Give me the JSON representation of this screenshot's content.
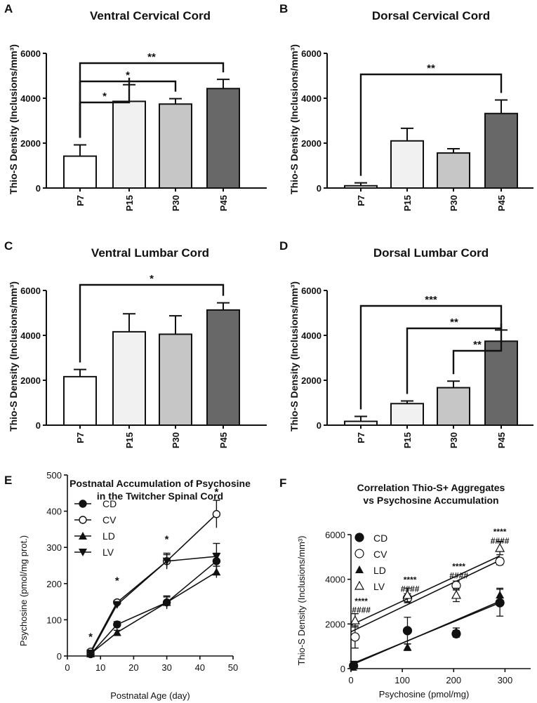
{
  "chart_data": [
    {
      "panel": "A",
      "type": "bar",
      "title": "Ventral Cervical Cord",
      "ylabel": "Thio-S Density (Inclusions/mm³)",
      "xlabel": "",
      "categories": [
        "P7",
        "P15",
        "P30",
        "P45"
      ],
      "values": [
        1420,
        3860,
        3740,
        4430
      ],
      "errors": [
        500,
        740,
        240,
        410
      ],
      "colors": [
        "#ffffff",
        "#f1f1f1",
        "#c6c6c6",
        "#686868"
      ],
      "ylim": [
        0,
        6000
      ],
      "yticks": [
        "0",
        "2000",
        "4000",
        "6000"
      ],
      "significance": [
        {
          "from": 0,
          "to": 1,
          "label": "*"
        },
        {
          "from": 0,
          "to": 2,
          "label": "*"
        },
        {
          "from": 0,
          "to": 3,
          "label": "**"
        }
      ]
    },
    {
      "panel": "B",
      "type": "bar",
      "title": "Dorsal Cervical Cord",
      "ylabel": "Thio-S Density (Inclusions/mm³)",
      "xlabel": "",
      "categories": [
        "P7",
        "P15",
        "P30",
        "P45"
      ],
      "values": [
        100,
        2100,
        1560,
        3320
      ],
      "errors": [
        130,
        560,
        190,
        600
      ],
      "colors": [
        "#ffffff",
        "#f1f1f1",
        "#c6c6c6",
        "#686868"
      ],
      "ylim": [
        0,
        6000
      ],
      "yticks": [
        "0",
        "2000",
        "4000",
        "6000"
      ],
      "significance": [
        {
          "from": 0,
          "to": 3,
          "label": "**"
        }
      ]
    },
    {
      "panel": "C",
      "type": "bar",
      "title": "Ventral Lumbar Cord",
      "ylabel": "Thio-S Density (Inclusions/mm³)",
      "xlabel": "",
      "categories": [
        "P7",
        "P15",
        "P30",
        "P45"
      ],
      "values": [
        2160,
        4160,
        4050,
        5130
      ],
      "errors": [
        320,
        800,
        820,
        320
      ],
      "colors": [
        "#ffffff",
        "#f1f1f1",
        "#c6c6c6",
        "#686868"
      ],
      "ylim": [
        0,
        6000
      ],
      "yticks": [
        "0",
        "2000",
        "4000",
        "6000"
      ],
      "significance": [
        {
          "from": 0,
          "to": 3,
          "label": "*"
        }
      ]
    },
    {
      "panel": "D",
      "type": "bar",
      "title": "Dorsal Lumbar Cord",
      "ylabel": "Thio-S Density (Inclusions/mm³)",
      "xlabel": "",
      "categories": [
        "P7",
        "P15",
        "P30",
        "P45"
      ],
      "values": [
        170,
        960,
        1670,
        3740
      ],
      "errors": [
        220,
        120,
        290,
        500
      ],
      "colors": [
        "#ffffff",
        "#f1f1f1",
        "#c6c6c6",
        "#686868"
      ],
      "ylim": [
        0,
        6000
      ],
      "yticks": [
        "0",
        "2000",
        "4000",
        "6000"
      ],
      "significance": [
        {
          "from": 0,
          "to": 3,
          "label": "***"
        },
        {
          "from": 1,
          "to": 3,
          "label": "**"
        },
        {
          "from": 2,
          "to": 3,
          "label": "**"
        }
      ]
    },
    {
      "panel": "E",
      "type": "line",
      "title": [
        "Postnatal Accumulation of Psychosine",
        "in the Twitcher Spinal Cord"
      ],
      "xlabel": "Postnatal Age (day)",
      "ylabel": "Psychosine (pmol/mg prot.)",
      "xlim": [
        0,
        50
      ],
      "ylim": [
        0,
        500
      ],
      "xticks": [
        "0",
        "10",
        "20",
        "30",
        "40",
        "50"
      ],
      "yticks": [
        "0",
        "100",
        "200",
        "300",
        "400",
        "500"
      ],
      "x": [
        7,
        15,
        30,
        45
      ],
      "series": [
        {
          "name": "CD",
          "marker": "circle-filled",
          "values": [
            5,
            87,
            148,
            262
          ],
          "errors": [
            3,
            8,
            18,
            22
          ]
        },
        {
          "name": "CV",
          "marker": "circle-open",
          "values": [
            12,
            148,
            262,
            392
          ],
          "errors": [
            3,
            6,
            22,
            38
          ]
        },
        {
          "name": "LD",
          "marker": "triangle-up",
          "values": [
            6,
            65,
            148,
            232
          ],
          "errors": [
            3,
            6,
            15,
            16
          ]
        },
        {
          "name": "LV",
          "marker": "triangle-down",
          "values": [
            8,
            142,
            262,
            275
          ],
          "errors": [
            3,
            6,
            18,
            36
          ]
        }
      ],
      "annotations": [
        {
          "x": 7,
          "y": 55,
          "text": "*"
        },
        {
          "x": 15,
          "y": 210,
          "text": "*"
        },
        {
          "x": 30,
          "y": 325,
          "text": "*"
        },
        {
          "x": 45,
          "y": 455,
          "text": "*"
        }
      ]
    },
    {
      "panel": "F",
      "type": "scatter",
      "title": [
        "Correlation Thio-S+ Aggregates",
        "vs Psychosine Accumulation"
      ],
      "xlabel": "Psychosine (pmol/mg)",
      "ylabel": "Thio-S Density (Inclusions/mm³)",
      "xlim": [
        0,
        350
      ],
      "ylim": [
        0,
        6000
      ],
      "xticks": [
        "0",
        "100",
        "200",
        "300"
      ],
      "yticks": [
        "0",
        "2000",
        "4000",
        "6000"
      ],
      "series": [
        {
          "name": "CD",
          "marker": "circle-filled",
          "points": [
            [
              5,
              130
            ],
            [
              110,
              1700
            ],
            [
              205,
              1560
            ],
            [
              290,
              2950
            ]
          ],
          "errors": [
            200,
            600,
            150,
            600
          ],
          "fit": [
            [
              0,
              200
            ],
            [
              290,
              2950
            ]
          ]
        },
        {
          "name": "CV",
          "marker": "circle-open",
          "points": [
            [
              8,
              1420
            ],
            [
              110,
              3150
            ],
            [
              205,
              3720
            ],
            [
              290,
              4800
            ]
          ],
          "errors": [
            500,
            200,
            200,
            150
          ],
          "fit": [
            [
              0,
              1650
            ],
            [
              290,
              4850
            ]
          ]
        },
        {
          "name": "LD",
          "marker": "triangle-up",
          "points": [
            [
              5,
              170
            ],
            [
              110,
              960
            ],
            [
              205,
              1670
            ],
            [
              290,
              3300
            ]
          ],
          "errors": [
            150,
            150,
            150,
            300
          ],
          "fit": [
            [
              0,
              150
            ],
            [
              290,
              3020
            ]
          ]
        },
        {
          "name": "LV",
          "marker": "triangle-down",
          "points": [
            [
              8,
              2160
            ],
            [
              110,
              3300
            ],
            [
              205,
              3300
            ],
            [
              290,
              5400
            ]
          ],
          "errors": [
            300,
            300,
            300,
            300
          ],
          "fit": [
            [
              0,
              1950
            ],
            [
              290,
              5050
            ]
          ]
        }
      ],
      "annotations": [
        {
          "x": 20,
          "y": 3050,
          "text": "****"
        },
        {
          "x": 20,
          "y": 2650,
          "text": "####"
        },
        {
          "x": 115,
          "y": 4000,
          "text": "****"
        },
        {
          "x": 115,
          "y": 3600,
          "text": "####"
        },
        {
          "x": 210,
          "y": 4600,
          "text": "****"
        },
        {
          "x": 210,
          "y": 4200,
          "text": "####"
        },
        {
          "x": 290,
          "y": 6150,
          "text": "****"
        },
        {
          "x": 290,
          "y": 5750,
          "text": "####"
        }
      ]
    }
  ]
}
